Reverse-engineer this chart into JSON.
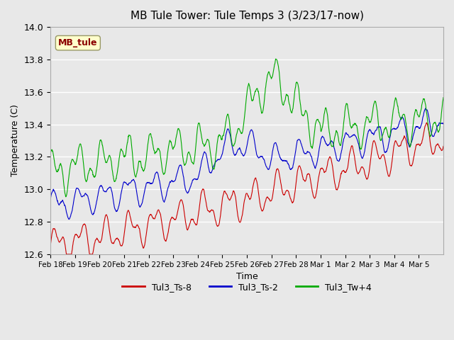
{
  "title": "MB Tule Tower: Tule Temps 3 (3/23/17-now)",
  "xlabel": "Time",
  "ylabel": "Temperature (C)",
  "ylim": [
    12.6,
    14.0
  ],
  "series_colors": {
    "Tul3_Ts-8": "#cc0000",
    "Tul3_Ts-2": "#0000cc",
    "Tul3_Tw+4": "#00aa00"
  },
  "legend_label": "MB_tule",
  "legend_label_color": "#8b0000",
  "legend_bg": "#ffffcc",
  "legend_edge": "#999966",
  "bg_color": "#e8e8e8",
  "plot_bg": "#e8e8e8",
  "grid_color": "#ffffff",
  "x_tick_labels": [
    "Feb 18",
    "Feb 19",
    "Feb 20",
    "Feb 21",
    "Feb 22",
    "Feb 23",
    "Feb 24",
    "Feb 25",
    "Feb 26",
    "Feb 27",
    "Feb 28",
    "Mar 1",
    "Mar 2",
    "Mar 3",
    "Mar 4",
    "Mar 5"
  ],
  "num_days": 16
}
